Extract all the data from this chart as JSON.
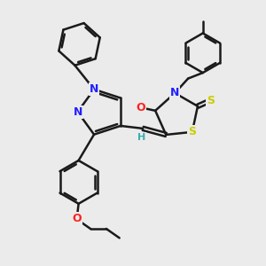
{
  "bg_color": "#ebebeb",
  "line_color": "#1a1a1a",
  "bond_width": 1.8,
  "atom_colors": {
    "N": "#2020ff",
    "O": "#ff2020",
    "S": "#cccc00",
    "H": "#3aaeae",
    "C": "#1a1a1a"
  },
  "font_size": 9,
  "figsize": [
    3.0,
    3.0
  ],
  "dpi": 100
}
